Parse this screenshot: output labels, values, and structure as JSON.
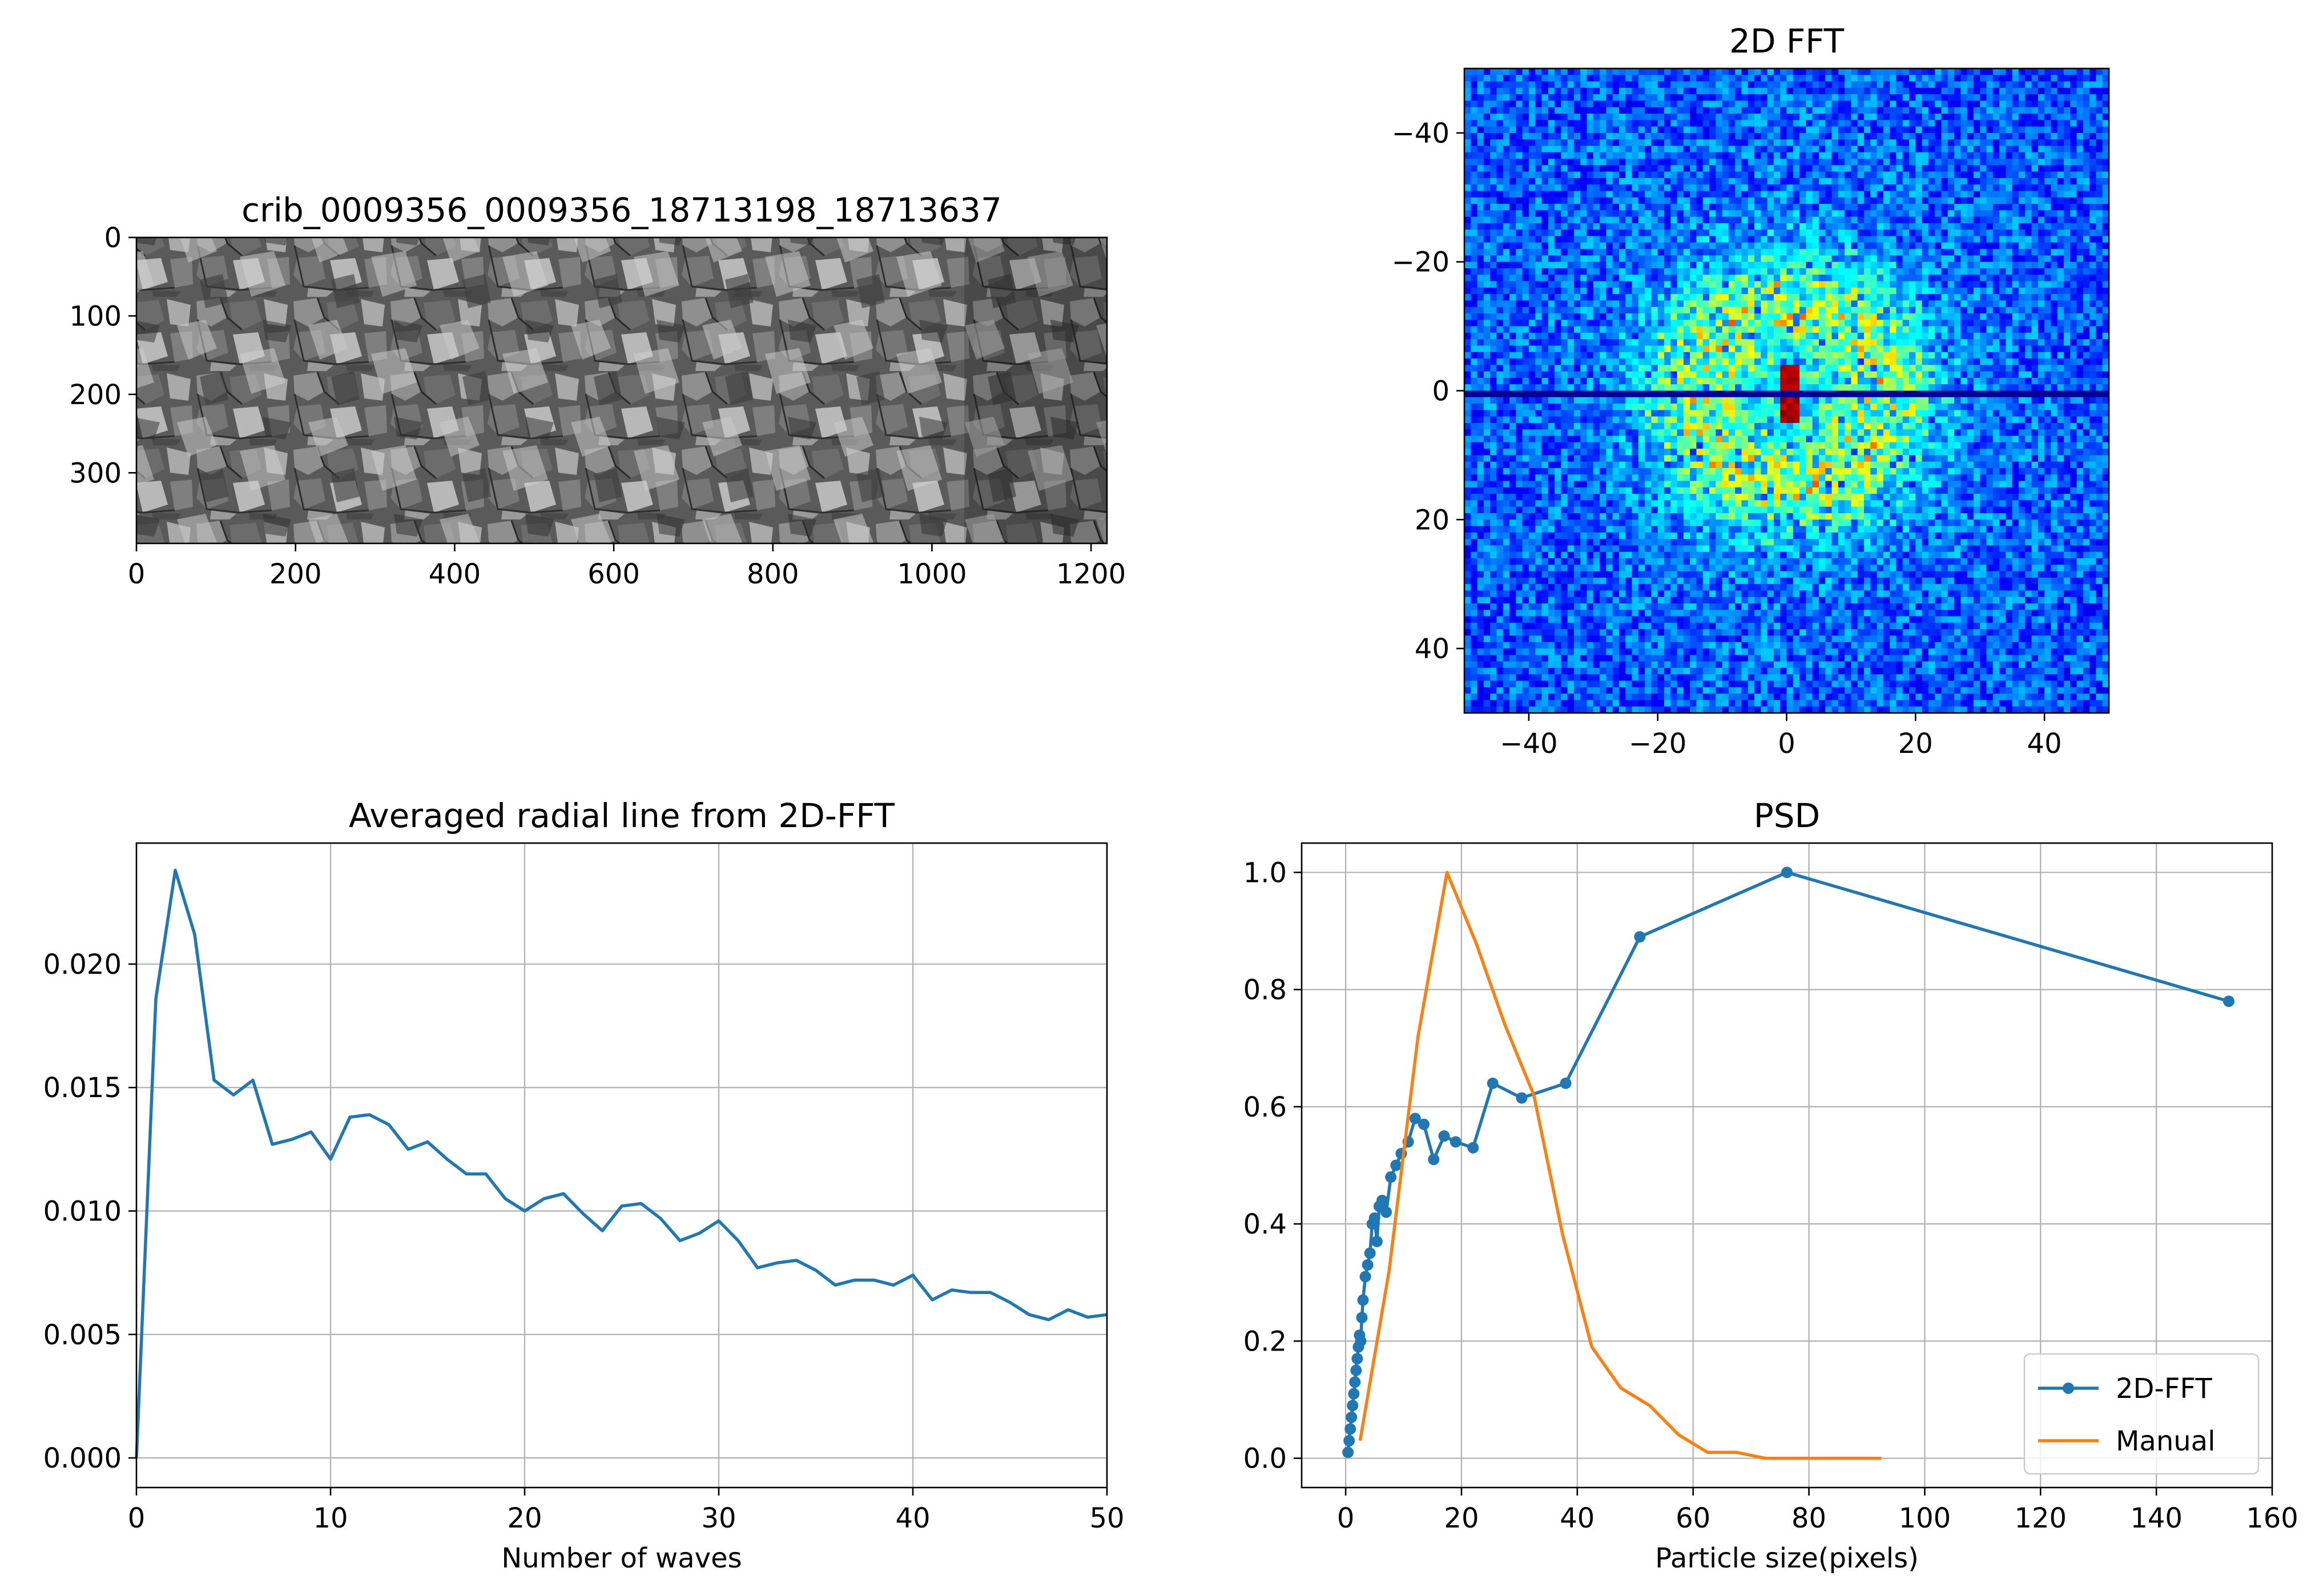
{
  "chart_data": [
    {
      "type": "image",
      "title": "crib_0009356_0009356_18713198_18713637",
      "xlim": [
        0,
        1220
      ],
      "ylim": [
        390,
        0
      ],
      "xticks": [
        "0",
        "200",
        "400",
        "600",
        "800",
        "1000",
        "1200"
      ],
      "yticks": [
        "0",
        "100",
        "200",
        "300"
      ],
      "colormap": "gray"
    },
    {
      "type": "heatmap",
      "title": "2D FFT",
      "xlim": [
        -50,
        50
      ],
      "ylim": [
        50,
        -50
      ],
      "xticks": [
        "−40",
        "−20",
        "0",
        "20",
        "40"
      ],
      "yticks": [
        "−40",
        "−20",
        "0",
        "20",
        "40"
      ],
      "colormap": "jet"
    },
    {
      "type": "line",
      "title": "Averaged radial line from 2D-FFT",
      "xlabel": "Number of waves",
      "ylabel": "",
      "xlim": [
        0,
        50
      ],
      "ylim": [
        -0.0012,
        0.0249
      ],
      "grid": true,
      "xticks": [
        "0",
        "10",
        "20",
        "30",
        "40",
        "50"
      ],
      "yticks": [
        "0.000",
        "0.005",
        "0.010",
        "0.015",
        "0.020"
      ],
      "x": [
        0,
        1,
        2,
        3,
        4,
        5,
        6,
        7,
        8,
        9,
        10,
        11,
        12,
        13,
        14,
        15,
        16,
        17,
        18,
        19,
        20,
        21,
        22,
        23,
        24,
        25,
        26,
        27,
        28,
        29,
        30,
        31,
        32,
        33,
        34,
        35,
        36,
        37,
        38,
        39,
        40,
        41,
        42,
        43,
        44,
        45,
        46,
        47,
        48,
        49,
        50
      ],
      "y": [
        0.0,
        0.0186,
        0.0238,
        0.0212,
        0.0153,
        0.0147,
        0.0153,
        0.0127,
        0.0129,
        0.0132,
        0.0121,
        0.0138,
        0.0139,
        0.0135,
        0.0125,
        0.0128,
        0.0121,
        0.0115,
        0.0115,
        0.0105,
        0.01,
        0.0105,
        0.0107,
        0.0099,
        0.0092,
        0.0102,
        0.0103,
        0.0097,
        0.0088,
        0.0091,
        0.0096,
        0.0088,
        0.0077,
        0.0079,
        0.008,
        0.0076,
        0.007,
        0.0072,
        0.0072,
        0.007,
        0.0074,
        0.0064,
        0.0068,
        0.0067,
        0.0067,
        0.0063,
        0.0058,
        0.0056,
        0.006,
        0.0057,
        0.0058
      ]
    },
    {
      "type": "line",
      "title": "PSD",
      "xlabel": "Particle size(pixels)",
      "ylabel": "",
      "xlim": [
        -7.6,
        160
      ],
      "ylim": [
        -0.05,
        1.05
      ],
      "grid": true,
      "legend_position": "bottom-right",
      "xticks": [
        "0",
        "20",
        "40",
        "60",
        "80",
        "100",
        "120",
        "140",
        "160"
      ],
      "yticks": [
        "0.0",
        "0.2",
        "0.4",
        "0.6",
        "0.8",
        "1.0"
      ],
      "series": [
        {
          "name": "2D-FFT",
          "color": "#1f77b4",
          "marker": "dot",
          "x": [
            0.4,
            0.6,
            0.8,
            1.0,
            1.2,
            1.4,
            1.6,
            1.8,
            2.0,
            2.2,
            2.4,
            2.6,
            2.8,
            3.0,
            3.4,
            3.8,
            4.2,
            4.6,
            5.0,
            5.4,
            5.8,
            6.3,
            7.0,
            7.8,
            8.7,
            9.6,
            10.8,
            12.0,
            13.5,
            15.2,
            17.0,
            19.0,
            22.0,
            25.4,
            30.4,
            38.0,
            50.8,
            76.2,
            152.5
          ],
          "y": [
            0.01,
            0.03,
            0.05,
            0.07,
            0.09,
            0.11,
            0.13,
            0.15,
            0.17,
            0.19,
            0.21,
            0.2,
            0.24,
            0.27,
            0.31,
            0.33,
            0.35,
            0.4,
            0.41,
            0.37,
            0.43,
            0.44,
            0.42,
            0.48,
            0.5,
            0.52,
            0.54,
            0.58,
            0.57,
            0.51,
            0.55,
            0.54,
            0.53,
            0.64,
            0.615,
            0.64,
            0.89,
            1.0,
            0.78
          ]
        },
        {
          "name": "Manual",
          "color": "#ff7f0e",
          "x": [
            2.5,
            7.5,
            12.5,
            17.5,
            22.5,
            27.5,
            32.5,
            37.5,
            42.5,
            47.5,
            52.5,
            57.5,
            62.5,
            67.5,
            72.5,
            77.5,
            82.5,
            87.5,
            92.5
          ],
          "y": [
            0.03,
            0.32,
            0.72,
            1.0,
            0.88,
            0.74,
            0.62,
            0.38,
            0.19,
            0.12,
            0.09,
            0.04,
            0.01,
            0.01,
            0.0,
            0.0,
            0.0,
            0.0,
            0.0
          ]
        }
      ]
    }
  ]
}
